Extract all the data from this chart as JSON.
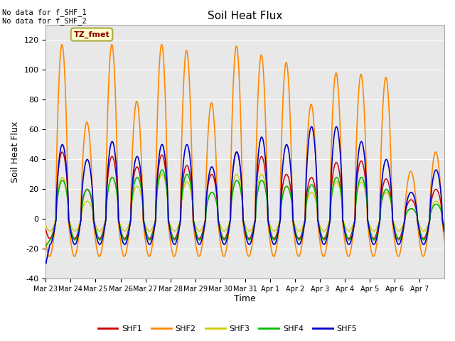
{
  "title": "Soil Heat Flux",
  "ylabel": "Soil Heat Flux",
  "xlabel": "Time",
  "ylim": [
    -40,
    130
  ],
  "bg_color": "#e8e8e8",
  "fig_color": "#ffffff",
  "annotations": [
    "No data for f_SHF_1",
    "No data for f_SHF_2"
  ],
  "tz_label": "TZ_fmet",
  "legend_labels": [
    "SHF1",
    "SHF2",
    "SHF3",
    "SHF4",
    "SHF5"
  ],
  "colors": {
    "SHF1": "#cc0000",
    "SHF2": "#ff8800",
    "SHF3": "#cccc00",
    "SHF4": "#00bb00",
    "SHF5": "#0000cc"
  },
  "xtick_labels": [
    "Mar 23",
    "Mar 24",
    "Mar 25",
    "Mar 26",
    "Mar 27",
    "Mar 28",
    "Mar 29",
    "Mar 30",
    "Mar 31",
    "Apr 1",
    "Apr 2",
    "Apr 3",
    "Apr 4",
    "Apr 5",
    "Apr 6",
    "Apr 7"
  ],
  "ytick_values": [
    -40,
    -20,
    0,
    20,
    40,
    60,
    80,
    100,
    120
  ],
  "n_days": 16,
  "pts_per_day": 288,
  "shf2_peaks": [
    117,
    65,
    117,
    79,
    117,
    113,
    78,
    116,
    110,
    105,
    77,
    98,
    97,
    95,
    32,
    45
  ],
  "shf1_peaks": [
    45,
    20,
    42,
    35,
    43,
    36,
    30,
    45,
    42,
    30,
    28,
    38,
    39,
    27,
    13,
    20
  ],
  "shf3_peaks": [
    28,
    12,
    28,
    22,
    30,
    25,
    18,
    30,
    30,
    22,
    18,
    25,
    25,
    18,
    7,
    12
  ],
  "shf4_peaks": [
    26,
    20,
    28,
    28,
    33,
    30,
    18,
    26,
    26,
    22,
    23,
    28,
    28,
    20,
    7,
    10
  ],
  "shf5_peaks": [
    50,
    40,
    52,
    42,
    50,
    50,
    35,
    45,
    55,
    50,
    62,
    62,
    52,
    40,
    18,
    33
  ],
  "shf2_night": -25,
  "shf1_night": -13,
  "shf3_night": -8,
  "shf4_night": -14,
  "shf5_night": -17
}
